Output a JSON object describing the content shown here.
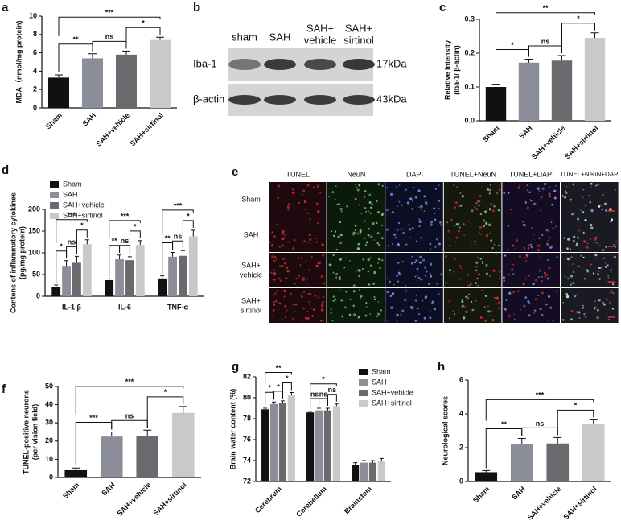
{
  "chart_data": [
    {
      "type": "bar",
      "panel_label": "a",
      "ylabel": [
        "MDA（nmol/mg protein)"
      ],
      "categories": [
        "Sham",
        "SAH",
        "SAH+vehicle",
        "SAH+sirtinol"
      ],
      "values": [
        3.3,
        5.4,
        5.8,
        7.4
      ],
      "errors": [
        0.3,
        0.5,
        0.4,
        0.3
      ],
      "colors": [
        "#111111",
        "#8b8d99",
        "#6a6a6e",
        "#c9c9c9"
      ],
      "ylim": [
        0,
        10
      ],
      "yticks": [
        0,
        2,
        4,
        6,
        8,
        10
      ],
      "significance": [
        "**",
        "ns",
        "*",
        "***"
      ]
    },
    {
      "type": "bar",
      "panel_label": "c",
      "ylabel": [
        "Relative intensity",
        "(Iba-1/ β-actin)"
      ],
      "categories": [
        "Sham",
        "SAH",
        "SAH+vehicle",
        "SAH+sirtinol"
      ],
      "values": [
        0.1,
        0.172,
        0.178,
        0.245
      ],
      "errors": [
        0.008,
        0.01,
        0.015,
        0.015
      ],
      "colors": [
        "#111111",
        "#8b8d99",
        "#6a6a6e",
        "#c9c9c9"
      ],
      "ylim": [
        0,
        0.3
      ],
      "yticks": [
        {
          "value": 0,
          "label": "0.0"
        },
        0.1,
        0.2,
        0.3
      ],
      "significance": [
        "*",
        "ns",
        "*",
        "**"
      ]
    },
    {
      "type": "grouped_bar",
      "panel_label": "d",
      "ylabel": [
        "Contens of inflammatory cytokines",
        "(pg/mg protein)"
      ],
      "categories": [
        "IL-1 β",
        "IL-6",
        "TNF-α"
      ],
      "series": [
        {
          "name": "Sham",
          "color": "#111111",
          "values": [
            22,
            37,
            41
          ],
          "errors": [
            4,
            3,
            6
          ]
        },
        {
          "name": "SAH",
          "color": "#8b8d99",
          "values": [
            70,
            85,
            91
          ],
          "errors": [
            12,
            10,
            10
          ]
        },
        {
          "name": "SAH+vehicle",
          "color": "#6a6a6e",
          "values": [
            77,
            83,
            93
          ],
          "errors": [
            15,
            8,
            12
          ]
        },
        {
          "name": "SAH+sirtinol",
          "color": "#c9c9c9",
          "values": [
            120,
            118,
            138
          ],
          "errors": [
            10,
            10,
            14
          ]
        }
      ],
      "ylim": [
        0,
        200
      ],
      "yticks": [
        0,
        50,
        100,
        150,
        200
      ],
      "significance": [
        [
          "*",
          "ns",
          "*",
          "***"
        ],
        [
          "**",
          "ns",
          "*",
          "***"
        ],
        [
          "**",
          "ns",
          "*",
          "***"
        ]
      ]
    },
    {
      "type": "bar",
      "panel_label": "f",
      "ylabel": [
        "TUNEL-positive neurons",
        "(per vision field)"
      ],
      "categories": [
        "Sham",
        "SAH",
        "SAH+vehicle",
        "SAH+sirtinol"
      ],
      "values": [
        4,
        22.5,
        23,
        35.5
      ],
      "errors": [
        1.2,
        2.5,
        3,
        3.5
      ],
      "colors": [
        "#111111",
        "#8b8d99",
        "#6a6a6e",
        "#c9c9c9"
      ],
      "ylim": [
        0,
        50
      ],
      "yticks": [
        0,
        10,
        20,
        30,
        40,
        50
      ],
      "significance": [
        "***",
        "ns",
        "*",
        "***"
      ]
    },
    {
      "type": "grouped_bar",
      "panel_label": "g",
      "ylabel": [
        "Brain water content (%)"
      ],
      "categories": [
        "Cerebrum",
        "Cerebellum",
        "Brainstem"
      ],
      "series": [
        {
          "name": "Sham",
          "color": "#111111",
          "values": [
            78.9,
            78.6,
            73.6
          ],
          "errors": [
            0.1,
            0.1,
            0.2
          ]
        },
        {
          "name": "SAH",
          "color": "#8b8d99",
          "values": [
            79.4,
            78.8,
            73.8
          ],
          "errors": [
            0.2,
            0.2,
            0.2
          ]
        },
        {
          "name": "SAH+vehicle",
          "color": "#6a6a6e",
          "values": [
            79.5,
            78.8,
            73.8
          ],
          "errors": [
            0.2,
            0.2,
            0.2
          ]
        },
        {
          "name": "SAH+sirtinol",
          "color": "#c9c9c9",
          "values": [
            80.3,
            79.2,
            74.0
          ],
          "errors": [
            0.2,
            0.2,
            0.2
          ]
        }
      ],
      "ylim": [
        72,
        82
      ],
      "yticks": [
        72,
        74,
        76,
        78,
        80,
        82
      ],
      "significance": [
        [
          "*",
          "*",
          "*",
          "**"
        ],
        [
          "ns",
          "ns",
          "ns",
          "*"
        ],
        null
      ]
    },
    {
      "type": "bar",
      "panel_label": "h",
      "ylabel": [
        "Neurological scores"
      ],
      "categories": [
        "Sham",
        "SAH",
        "SAH+vehicle",
        "SAH+sirtinol"
      ],
      "values": [
        0.55,
        2.2,
        2.25,
        3.4
      ],
      "errors": [
        0.1,
        0.35,
        0.35,
        0.25
      ],
      "colors": [
        "#111111",
        "#8b8d99",
        "#6a6a6e",
        "#c9c9c9"
      ],
      "ylim": [
        0,
        6
      ],
      "yticks": [
        0,
        2,
        4,
        6
      ],
      "significance": [
        "**",
        "ns",
        "*",
        "***"
      ]
    }
  ],
  "blot": {
    "panel_label": "b",
    "columns": [
      [
        "sham"
      ],
      [
        "SAH"
      ],
      [
        "SAH+",
        "vehicle"
      ],
      [
        "SAH+",
        "sirtinol"
      ]
    ],
    "rows": [
      {
        "label": "Iba-1",
        "size": "17kDa"
      },
      {
        "label": "β-actin",
        "size": "43kDa"
      }
    ]
  },
  "micrograph": {
    "panel_label": "e",
    "columns": [
      "TUNEL",
      "NeuN",
      "DAPI",
      "TUNEL+NeuN",
      "TUNEL+DAPI",
      "TUNEL+NeuN+DAPI"
    ],
    "rows": [
      [
        "Sham"
      ],
      [
        "SAH"
      ],
      [
        "SAH+",
        "vehicle"
      ],
      [
        "SAH+",
        "sirtinol"
      ]
    ]
  }
}
